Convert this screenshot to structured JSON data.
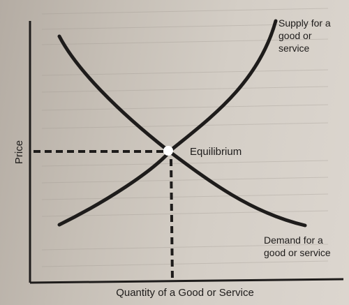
{
  "figure": {
    "y_axis_label": "Price",
    "x_axis_label": "Quantity of a Good or Service",
    "supply_label": [
      "Supply for a",
      "good or",
      "service"
    ],
    "demand_label": [
      "Demand for a",
      "good or service"
    ],
    "equilibrium_label": "Equilibrium"
  },
  "colors": {
    "paper": "#d0c9c1",
    "ink": "#1e1c1b"
  }
}
